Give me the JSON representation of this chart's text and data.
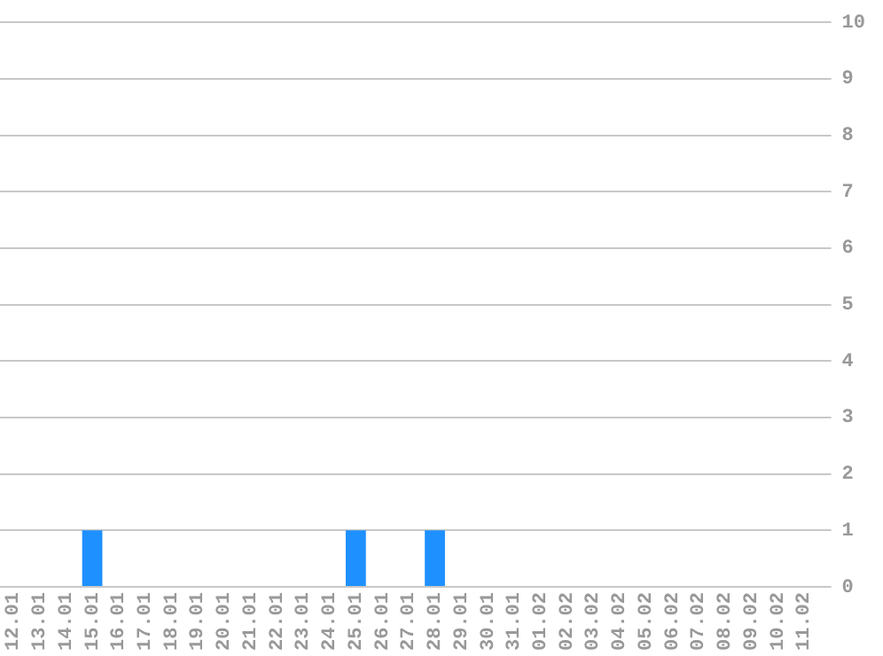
{
  "chart_data": {
    "type": "bar",
    "categories": [
      "12.01",
      "13.01",
      "14.01",
      "15.01",
      "16.01",
      "17.01",
      "18.01",
      "19.01",
      "20.01",
      "21.01",
      "22.01",
      "23.01",
      "24.01",
      "25.01",
      "26.01",
      "27.01",
      "28.01",
      "29.01",
      "30.01",
      "31.01",
      "01.02",
      "02.02",
      "03.02",
      "04.02",
      "05.02",
      "06.02",
      "07.02",
      "08.02",
      "09.02",
      "10.02",
      "11.02"
    ],
    "values": [
      0,
      0,
      0,
      1,
      0,
      0,
      0,
      0,
      0,
      0,
      0,
      0,
      0,
      1,
      0,
      0,
      1,
      0,
      0,
      0,
      0,
      0,
      0,
      0,
      0,
      0,
      0,
      0,
      0,
      0,
      0
    ],
    "color": "#1e90ff",
    "ylim": [
      0,
      10
    ],
    "yticks": [
      0,
      1,
      2,
      3,
      4,
      5,
      6,
      7,
      8,
      9,
      10
    ],
    "grid": "y",
    "legend": false
  }
}
